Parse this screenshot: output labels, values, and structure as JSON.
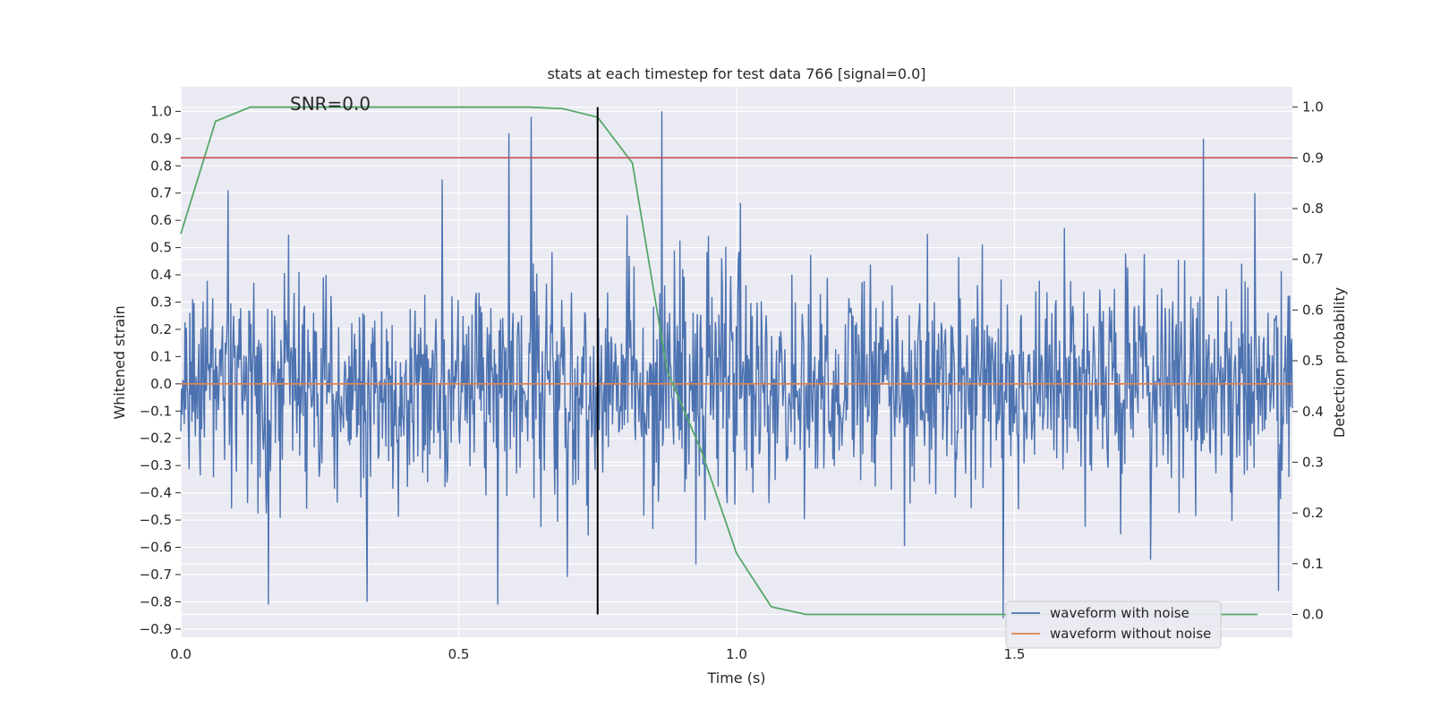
{
  "chart_data": {
    "type": "line",
    "title": "stats at each timestep for test data 766 [signal=0.0]",
    "annotation": "SNR=0.0",
    "xlabel": "Time (s)",
    "ylabel_left": "Whitened strain",
    "ylabel_right": "Detection probability",
    "xlim": [
      0.0,
      2.0
    ],
    "ylim_left": [
      -0.93,
      1.09
    ],
    "ylim_right": [
      -0.045,
      1.04
    ],
    "x_ticks": [
      0.0,
      0.5,
      1.0,
      1.5
    ],
    "x_tick_labels": [
      "0.0",
      "0.5",
      "1.0",
      "1.5"
    ],
    "y_left_ticks": [
      1.0,
      0.9,
      0.8,
      0.7,
      0.6,
      0.5,
      0.4,
      0.3,
      0.2,
      0.1,
      0.0,
      -0.1,
      -0.2,
      -0.3,
      -0.4,
      -0.5,
      -0.6,
      -0.7,
      -0.8,
      -0.9
    ],
    "y_left_tick_labels": [
      "1.0",
      "0.9",
      "0.8",
      "0.7",
      "0.6",
      "0.5",
      "0.4",
      "0.3",
      "0.2",
      "0.1",
      "0.0",
      "−0.1",
      "−0.2",
      "−0.3",
      "−0.4",
      "−0.5",
      "−0.6",
      "−0.7",
      "−0.8",
      "−0.9"
    ],
    "y_right_ticks": [
      1.0,
      0.9,
      0.8,
      0.7,
      0.6,
      0.5,
      0.4,
      0.3,
      0.2,
      0.1,
      0.0
    ],
    "y_right_tick_labels": [
      "1.0",
      "0.9",
      "0.8",
      "0.7",
      "0.6",
      "0.5",
      "0.4",
      "0.3",
      "0.2",
      "0.1",
      "0.0"
    ],
    "grid": true,
    "legend_placement": "lower-right",
    "series": [
      {
        "name": "waveform with noise",
        "axis": "left",
        "color": "#4c72b0",
        "note_style": "dense noise trace",
        "key_points": [
          {
            "x": 0.085,
            "y": 0.71
          },
          {
            "x": 0.158,
            "y": -0.81
          },
          {
            "x": 0.335,
            "y": -0.8
          },
          {
            "x": 0.47,
            "y": 0.75
          },
          {
            "x": 0.57,
            "y": -0.81
          },
          {
            "x": 0.59,
            "y": 0.92
          },
          {
            "x": 0.63,
            "y": 0.98
          },
          {
            "x": 0.865,
            "y": 1.0
          },
          {
            "x": 1.48,
            "y": -0.86
          },
          {
            "x": 1.84,
            "y": 0.9
          },
          {
            "x": 1.975,
            "y": -0.76
          }
        ],
        "amplitude_std": 0.2
      },
      {
        "name": "waveform without noise",
        "axis": "left",
        "color": "#dd8452",
        "x": [
          0.0,
          2.0
        ],
        "y": [
          0.0,
          0.0
        ]
      },
      {
        "name": "",
        "axis": "right",
        "color": "#55a868",
        "x": [
          0.0,
          0.0625,
          0.125,
          0.1875,
          0.25,
          0.3125,
          0.375,
          0.4375,
          0.5,
          0.5625,
          0.625,
          0.6875,
          0.75,
          0.8125,
          0.875,
          0.9375,
          1.0,
          1.0625,
          1.125,
          1.1875,
          1.25,
          1.3125,
          1.375,
          1.4375,
          1.5,
          1.5625,
          1.625,
          1.6875,
          1.75,
          1.8125,
          1.875,
          1.9375
        ],
        "y": [
          0.75,
          0.972,
          1.0,
          1.0,
          1.0,
          1.0,
          1.0,
          1.0,
          1.0,
          1.0,
          1.0,
          0.997,
          0.98,
          0.89,
          0.48,
          0.32,
          0.12,
          0.015,
          0.0,
          0.0,
          0.0,
          0.0,
          0.0,
          0.0,
          0.0,
          0.0,
          0.0,
          0.0,
          0.0,
          0.0,
          0.0,
          0.0
        ]
      }
    ],
    "reference_lines": [
      {
        "kind": "horizontal",
        "axis": "right",
        "y": 0.9,
        "color": "#c44e52"
      },
      {
        "kind": "vertical",
        "x": 0.75,
        "y_range_right": [
          0.0,
          1.0
        ],
        "color": "#000000"
      }
    ]
  },
  "legend": {
    "items": [
      {
        "label": "waveform with noise",
        "color": "#4c72b0"
      },
      {
        "label": "waveform without noise",
        "color": "#dd8452"
      }
    ]
  },
  "colors": {
    "plot_background": "#eaeaf2",
    "grid": "#ffffff",
    "page_background": "#ffffff"
  }
}
